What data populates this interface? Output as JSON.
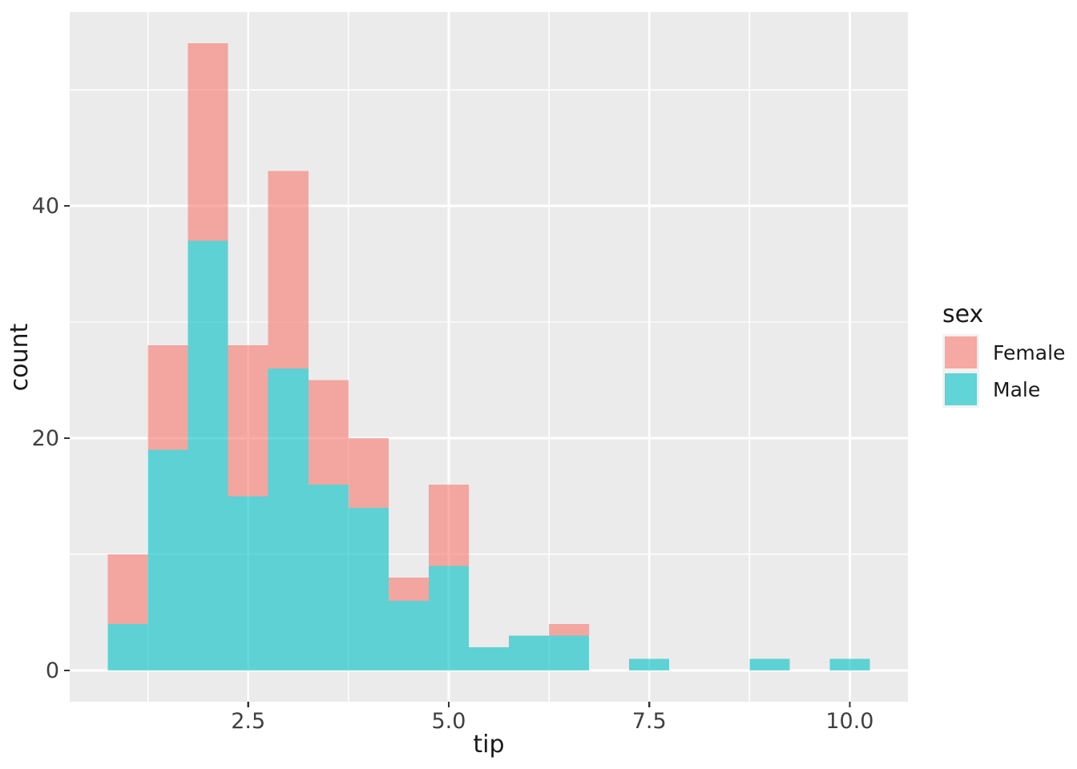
{
  "chart_data": {
    "type": "bar",
    "subtype": "stacked-histogram",
    "title": "",
    "xlabel": "tip",
    "ylabel": "count",
    "bin_width": 0.5,
    "bin_left_edges": [
      0.75,
      1.25,
      1.75,
      2.25,
      2.75,
      3.25,
      3.75,
      4.25,
      4.75,
      5.25,
      5.75,
      6.25,
      6.75,
      7.25,
      7.75,
      8.25,
      8.75,
      9.25,
      9.75
    ],
    "series": [
      {
        "name": "Male",
        "color": "#00BFC4",
        "values": [
          4,
          19,
          37,
          15,
          26,
          16,
          14,
          6,
          9,
          2,
          3,
          3,
          0,
          1,
          0,
          0,
          1,
          0,
          1
        ]
      },
      {
        "name": "Female",
        "color": "#F8766D",
        "values": [
          6,
          9,
          17,
          13,
          17,
          9,
          6,
          2,
          7,
          0,
          0,
          1,
          0,
          0,
          0,
          0,
          0,
          0,
          0
        ]
      }
    ],
    "stack_order_bottom_to_top": [
      "Male",
      "Female"
    ],
    "fill_alpha": 0.6,
    "xlim": [
      0.275,
      10.725
    ],
    "ylim": [
      -2.7,
      56.7
    ],
    "x_ticks": {
      "values": [
        2.5,
        5.0,
        7.5,
        10.0
      ],
      "labels": [
        "2.5",
        "5.0",
        "7.5",
        "10.0"
      ]
    },
    "y_ticks": {
      "values": [
        0,
        20,
        40
      ],
      "labels": [
        "0",
        "20",
        "40"
      ]
    },
    "grid": {
      "color": "#FFFFFF",
      "minor_x": [
        1.25,
        3.75,
        6.25,
        8.75
      ],
      "minor_y": [
        10,
        30,
        50
      ]
    },
    "panel_background": "#EBEBEB",
    "outer_background": "#FFFFFF",
    "tick_mark_color": "#333333",
    "tick_label_color": "#404040",
    "legend": {
      "title": "sex",
      "position": "right",
      "key_background": "#F2F2F2",
      "entries": [
        {
          "label": "Female",
          "color": "#F8766D"
        },
        {
          "label": "Male",
          "color": "#00BFC4"
        }
      ]
    }
  }
}
